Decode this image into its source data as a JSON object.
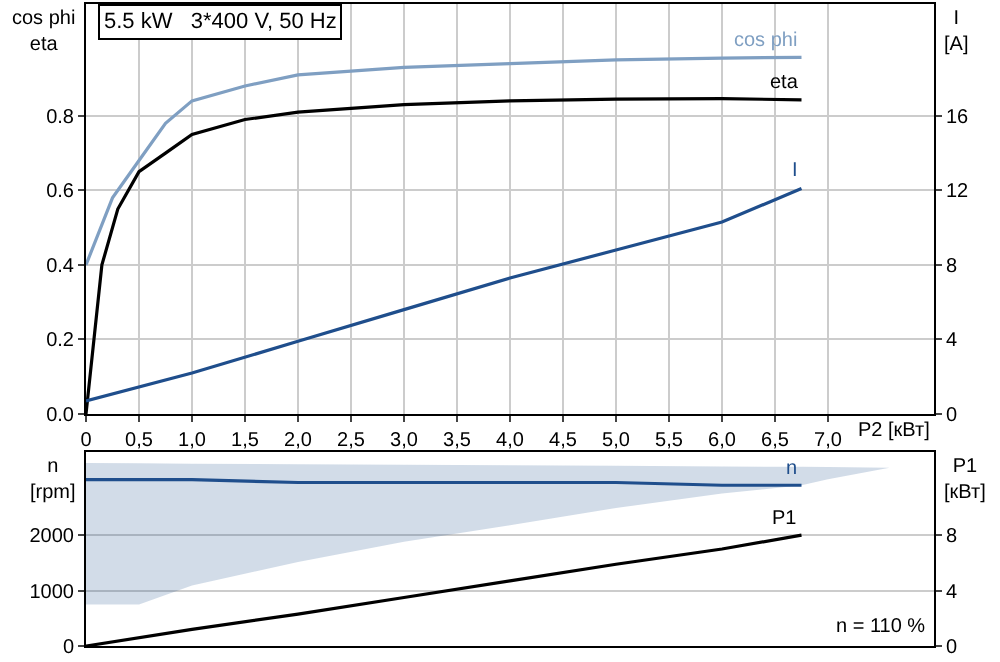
{
  "chart_data": [
    {
      "type": "line",
      "title": "5.5 kW   3*400 V, 50 Hz",
      "xlabel": "P2 [кВт]",
      "ylabel": "cos phi\neta",
      "y2label": "I\n[A]",
      "xlim": [
        0,
        8
      ],
      "xticks": [
        0,
        {
          "value": 0.5,
          "label": "0,5"
        },
        {
          "value": 1,
          "label": "1,0"
        },
        {
          "value": 1.5,
          "label": "1,5"
        },
        {
          "value": 2,
          "label": "2,0"
        },
        {
          "value": 2.5,
          "label": "2,5"
        },
        {
          "value": 3,
          "label": "3,0"
        },
        {
          "value": 3.5,
          "label": "3,5"
        },
        {
          "value": 4,
          "label": "4,0"
        },
        {
          "value": 4.5,
          "label": "4,5"
        },
        {
          "value": 5,
          "label": "5,0"
        },
        {
          "value": 5.5,
          "label": "5,5"
        },
        {
          "value": 6,
          "label": "6,0"
        },
        {
          "value": 6.5,
          "label": "6,5"
        },
        {
          "value": 7,
          "label": "7,0"
        }
      ],
      "ylim": [
        0,
        1.1
      ],
      "yticks": [
        {
          "value": 0,
          "label": "0.0"
        },
        0.2,
        0.4,
        0.6,
        0.8
      ],
      "y2lim": [
        0,
        22
      ],
      "y2ticks": [
        0,
        4,
        8,
        12,
        16
      ],
      "grid": true,
      "legend": false,
      "marker": "none",
      "line_style": "solid",
      "series": [
        {
          "name": "cos phi",
          "color": "#7f9fc2",
          "x": [
            0,
            0.25,
            0.5,
            0.75,
            1,
            1.5,
            2,
            3,
            4,
            5,
            6,
            6.75
          ],
          "values": [
            0.4,
            0.58,
            0.68,
            0.78,
            0.84,
            0.88,
            0.91,
            0.93,
            0.94,
            0.95,
            0.955,
            0.957
          ]
        },
        {
          "name": "eta",
          "color": "#000000",
          "x": [
            0,
            0.15,
            0.3,
            0.5,
            0.75,
            1,
            1.5,
            2,
            3,
            4,
            5,
            6,
            6.75
          ],
          "values": [
            0,
            0.4,
            0.55,
            0.65,
            0.7,
            0.75,
            0.79,
            0.81,
            0.83,
            0.84,
            0.845,
            0.846,
            0.843
          ]
        },
        {
          "name": "I",
          "color": "#1f4e8c",
          "axis": "y2",
          "x": [
            0,
            1,
            2,
            3,
            4,
            5,
            6,
            6.75
          ],
          "values": [
            0.7,
            2.2,
            3.9,
            5.6,
            7.3,
            8.8,
            10.3,
            12.1
          ]
        }
      ]
    },
    {
      "type": "line",
      "ylabel": "n\n[rpm]",
      "y2label": "P1\n[кВт]",
      "annotations": [
        "n = 110 %"
      ],
      "xlim": [
        0,
        8
      ],
      "ylim": [
        0,
        3500
      ],
      "yticks": [
        0,
        1000,
        2000
      ],
      "y2lim": [
        0,
        14
      ],
      "y2ticks": [
        0,
        4,
        8
      ],
      "tick_labels": "y",
      "grid": true,
      "legend": false,
      "marker": "none",
      "line_style": "solid",
      "series": [
        {
          "name": "n",
          "color": "#1f4e8c",
          "x": [
            0,
            0.5,
            1,
            2,
            3,
            4,
            5,
            6,
            6.75,
            7,
            7.58
          ],
          "values": [
            3000,
            3000,
            3000,
            2950,
            2950,
            2950,
            2950,
            2900,
            2900,
            null,
            null
          ],
          "lower": [
            750,
            750,
            1090,
            1516,
            1880,
            2180,
            2490,
            2750,
            2900,
            3010,
            3214
          ],
          "upper": [
            3300,
            3295,
            3290,
            3280,
            3270,
            3260,
            3250,
            3240,
            3232,
            3228,
            3214
          ]
        },
        {
          "name": "P1",
          "color": "#000000",
          "axis": "y2",
          "x": [
            0,
            1,
            2,
            3,
            4,
            5,
            6,
            6.75
          ],
          "values": [
            0,
            1.2,
            2.3,
            3.5,
            4.7,
            5.9,
            7.0,
            8.0
          ]
        }
      ]
    }
  ]
}
